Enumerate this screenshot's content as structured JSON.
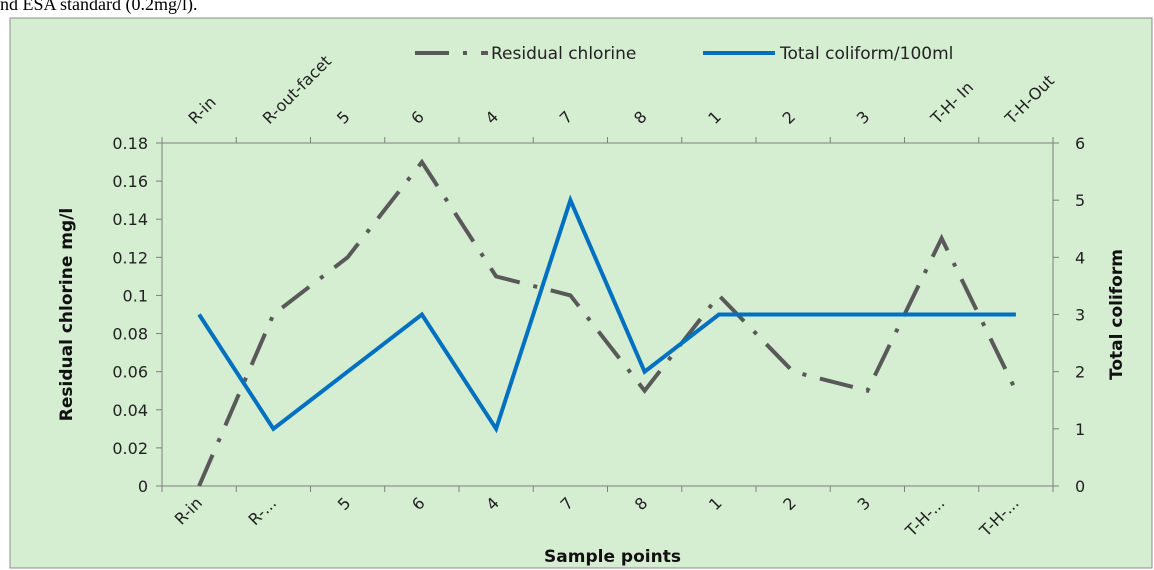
{
  "caption_fragment": "nd ESA standard (0.2mg/l).",
  "chart_data": {
    "type": "line",
    "categories_bottom": [
      "R-in",
      "R-...",
      "5",
      "6",
      "4",
      "7",
      "8",
      "1",
      "2",
      "3",
      "T-H-...",
      "T-H-..."
    ],
    "categories_top": [
      "R-in",
      "R-out-facet",
      "5",
      "6",
      "4",
      "7",
      "8",
      "1",
      "2",
      "3",
      "T-H- In",
      "T-H-Out"
    ],
    "xlabel": "Sample points",
    "ylabel_left": "Residual chlorine mg/l",
    "ylabel_right": "Total coliform",
    "ylim_left": [
      0,
      0.18
    ],
    "ylim_right": [
      0,
      6
    ],
    "yticks_left": [
      "0",
      "0.02",
      "0.04",
      "0.06",
      "0.08",
      "0.1",
      "0.12",
      "0.14",
      "0.16",
      "0.18"
    ],
    "yticks_right": [
      "0",
      "1",
      "2",
      "3",
      "4",
      "5",
      "6"
    ],
    "legend_position": "top-right",
    "grid": false,
    "series": [
      {
        "name": "Residual chlorine",
        "axis": "left",
        "style": "dash-dot",
        "color": "#595959",
        "values": [
          0,
          0.09,
          0.12,
          0.17,
          0.11,
          0.1,
          0.05,
          0.1,
          0.06,
          0.05,
          0.13,
          0.05
        ]
      },
      {
        "name": "Total coliform/100ml",
        "axis": "right",
        "style": "solid",
        "color": "#0070C0",
        "values": [
          3,
          1,
          2,
          3,
          1,
          5,
          2,
          3,
          3,
          3,
          3,
          3
        ]
      }
    ]
  },
  "colors": {
    "plot_background": "#D5EDD1",
    "axis": "#7f7f7f"
  }
}
